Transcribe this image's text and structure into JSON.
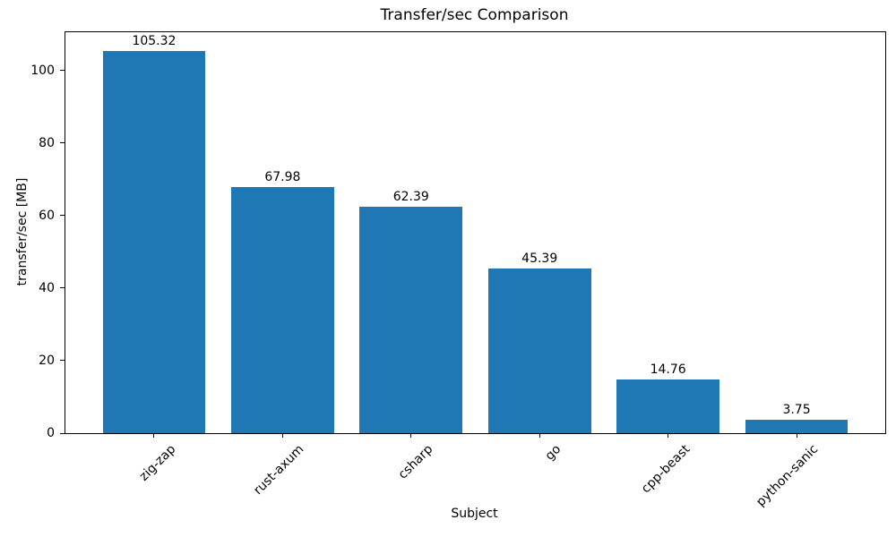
{
  "chart_data": {
    "type": "bar",
    "title": "Transfer/sec Comparison",
    "xlabel": "Subject",
    "ylabel": "transfer/sec [MB]",
    "categories": [
      "zig-zap",
      "rust-axum",
      "csharp",
      "go",
      "cpp-beast",
      "python-sanic"
    ],
    "values": [
      105.32,
      67.98,
      62.39,
      45.39,
      14.76,
      3.75
    ],
    "bar_labels": [
      "105.32",
      "67.98",
      "62.39",
      "45.39",
      "14.76",
      "3.75"
    ],
    "y_ticks": [
      0,
      20,
      40,
      60,
      80,
      100
    ],
    "y_tick_labels": [
      "0",
      "20",
      "40",
      "60",
      "80",
      "100"
    ],
    "ylim": [
      0,
      110.6
    ],
    "x_tick_rotation_deg": 45,
    "grid": false,
    "legend": null,
    "bar_color": "#1f77b4",
    "axis_color": "#000000",
    "text_color": "#000000",
    "background_color": "#ffffff"
  }
}
